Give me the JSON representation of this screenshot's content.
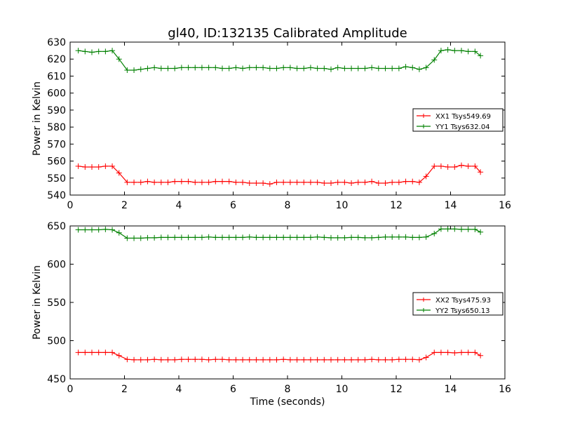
{
  "title": "gl40, ID:132135 Calibrated Amplitude",
  "colors": {
    "xx": "#ff0000",
    "yy": "#008000",
    "axis": "#000000",
    "background": "#ffffff"
  },
  "chart_data": [
    {
      "type": "line",
      "ylabel": "Power in Kelvin",
      "xlim": [
        0,
        16
      ],
      "ylim": [
        540,
        630
      ],
      "xticks": [
        0,
        2,
        4,
        6,
        8,
        10,
        12,
        14,
        16
      ],
      "yticks": [
        540,
        550,
        560,
        570,
        580,
        590,
        600,
        610,
        620,
        630
      ],
      "grid": false,
      "legend_position": "center-right",
      "x": [
        0.3,
        0.55,
        0.8,
        1.05,
        1.3,
        1.55,
        1.8,
        2.1,
        2.35,
        2.6,
        2.85,
        3.1,
        3.35,
        3.6,
        3.85,
        4.1,
        4.35,
        4.6,
        4.85,
        5.1,
        5.35,
        5.6,
        5.85,
        6.1,
        6.35,
        6.6,
        6.85,
        7.1,
        7.35,
        7.6,
        7.85,
        8.1,
        8.35,
        8.6,
        8.85,
        9.1,
        9.35,
        9.6,
        9.85,
        10.1,
        10.35,
        10.6,
        10.85,
        11.1,
        11.35,
        11.6,
        11.85,
        12.1,
        12.35,
        12.6,
        12.85,
        13.1,
        13.4,
        13.65,
        13.9,
        14.15,
        14.4,
        14.65,
        14.9,
        15.1
      ],
      "series": [
        {
          "name": "XX1 Tsys549.69",
          "key": "xx",
          "values": [
            557,
            556.5,
            556.5,
            556.5,
            557,
            557,
            553,
            547.5,
            547.5,
            547.5,
            548,
            547.5,
            547.5,
            547.5,
            548,
            548,
            548,
            547.5,
            547.5,
            547.5,
            548,
            548,
            548,
            547.5,
            547.5,
            547,
            547,
            547,
            546.5,
            547.5,
            547.5,
            547.5,
            547.5,
            547.5,
            547.5,
            547.5,
            547,
            547,
            547.5,
            547.5,
            547,
            547.5,
            547.5,
            548,
            547,
            547,
            547.5,
            547.5,
            548,
            548,
            547.5,
            551,
            557,
            557,
            556.5,
            556.5,
            557.5,
            557,
            557,
            553.5
          ]
        },
        {
          "name": "YY1 Tsys632.04",
          "key": "yy",
          "values": [
            625,
            624.5,
            624,
            624.5,
            624.5,
            625,
            620,
            613.5,
            613.5,
            614,
            614.5,
            615,
            614.5,
            614.5,
            614.5,
            615,
            615,
            615,
            615,
            615,
            615,
            614.5,
            614.5,
            615,
            614.5,
            615,
            615,
            615,
            614.5,
            614.5,
            615,
            615,
            614.5,
            614.5,
            615,
            614.5,
            614.5,
            614,
            615,
            614.5,
            614.5,
            614.5,
            614.5,
            615,
            614.5,
            614.5,
            614.5,
            614.5,
            615.5,
            615,
            614,
            615,
            619.5,
            625,
            625.5,
            625,
            625,
            624.5,
            624.5,
            622
          ]
        }
      ]
    },
    {
      "type": "line",
      "xlabel": "Time (seconds)",
      "ylabel": "Power in Kelvin",
      "xlim": [
        0,
        16
      ],
      "ylim": [
        450,
        650
      ],
      "xticks": [
        0,
        2,
        4,
        6,
        8,
        10,
        12,
        14,
        16
      ],
      "yticks": [
        450,
        500,
        550,
        600,
        650
      ],
      "grid": false,
      "legend_position": "center-right",
      "x": [
        0.3,
        0.55,
        0.8,
        1.05,
        1.3,
        1.55,
        1.8,
        2.1,
        2.35,
        2.6,
        2.85,
        3.1,
        3.35,
        3.6,
        3.85,
        4.1,
        4.35,
        4.6,
        4.85,
        5.1,
        5.35,
        5.6,
        5.85,
        6.1,
        6.35,
        6.6,
        6.85,
        7.1,
        7.35,
        7.6,
        7.85,
        8.1,
        8.35,
        8.6,
        8.85,
        9.1,
        9.35,
        9.6,
        9.85,
        10.1,
        10.35,
        10.6,
        10.85,
        11.1,
        11.35,
        11.6,
        11.85,
        12.1,
        12.35,
        12.6,
        12.85,
        13.1,
        13.4,
        13.65,
        13.9,
        14.15,
        14.4,
        14.65,
        14.9,
        15.1
      ],
      "series": [
        {
          "name": "XX2 Tsys475.93",
          "key": "xx",
          "values": [
            484.5,
            484.5,
            484.5,
            484.5,
            484.5,
            484.5,
            480.5,
            475.5,
            475,
            475,
            475,
            475.5,
            475,
            475,
            475,
            475.5,
            475.5,
            475.5,
            475.5,
            475,
            475.5,
            475.5,
            475,
            475,
            475,
            475,
            475,
            475,
            475,
            475,
            475.5,
            475,
            475,
            475,
            475,
            475,
            475,
            475,
            475,
            475,
            475,
            475,
            475,
            475.5,
            475,
            475,
            475,
            475.5,
            475.5,
            475.5,
            475,
            478,
            484.5,
            484.5,
            484.5,
            484,
            484.5,
            484.5,
            484.5,
            480.5
          ]
        },
        {
          "name": "YY2 Tsys650.13",
          "key": "yy",
          "values": [
            645,
            645,
            645,
            645,
            645.5,
            645,
            641,
            634,
            634,
            634,
            634.5,
            634.5,
            635,
            635,
            635,
            635,
            635,
            635,
            635,
            635.5,
            635,
            635,
            635,
            635,
            635,
            635.5,
            635,
            635,
            635,
            635,
            635,
            635,
            635,
            635,
            635,
            635.5,
            635,
            634.5,
            634.5,
            634.5,
            635,
            635,
            634.5,
            634.5,
            635,
            635.5,
            635.5,
            635.5,
            635.5,
            635,
            635,
            635.5,
            640,
            646,
            646,
            646,
            645.5,
            645.5,
            645.5,
            642
          ]
        }
      ]
    }
  ]
}
